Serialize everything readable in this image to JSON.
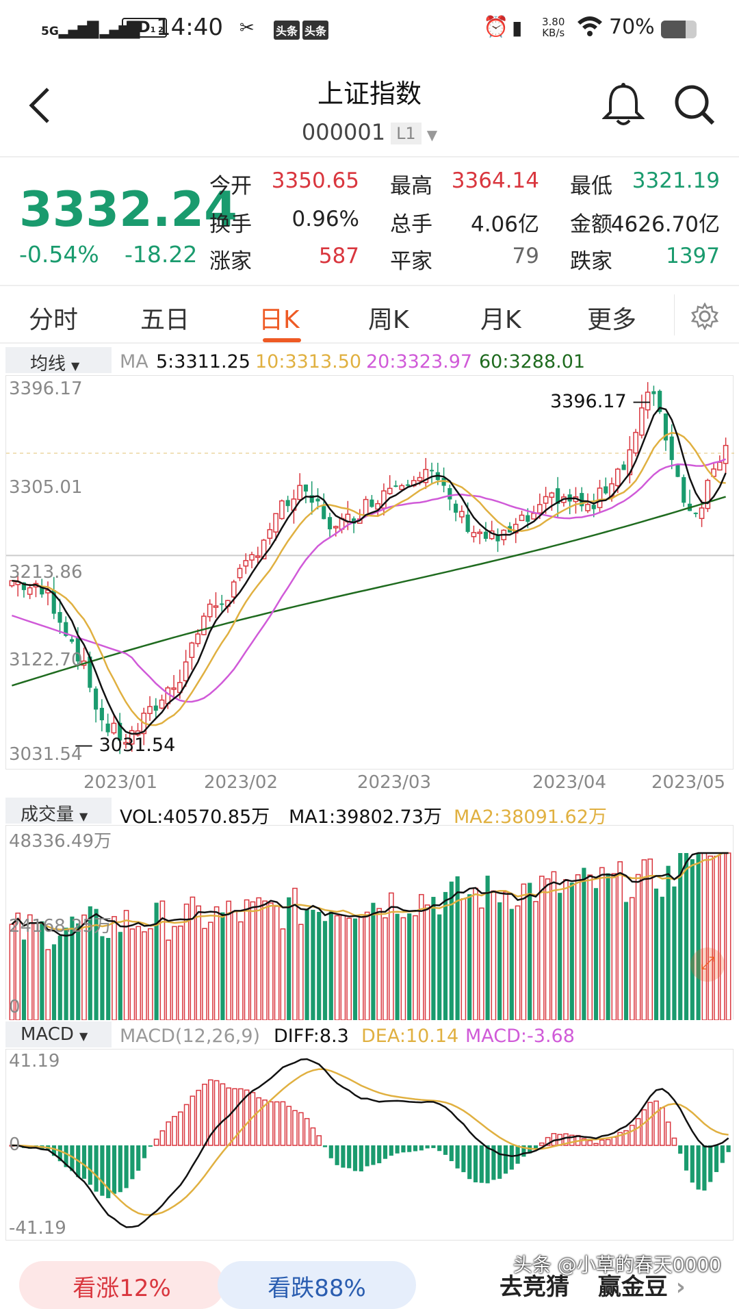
{
  "status_bar": {
    "net1": "5G",
    "net2": "4G",
    "hd": "HD",
    "hd_sub": "1 2",
    "time": "14:40",
    "badge1": "头条",
    "badge2": "头条",
    "speed_value": "3.80",
    "speed_unit": "KB/s",
    "battery": "70%",
    "battery_level": 0.7
  },
  "header": {
    "title": "上证指数",
    "code": "000001",
    "level_tag": "L1"
  },
  "quote": {
    "price": "3332.24",
    "change_pct": "-0.54%",
    "change": "-18.22",
    "rows": [
      [
        {
          "k": "今开",
          "v": "3350.65",
          "c": "red"
        },
        {
          "k": "最高",
          "v": "3364.14",
          "c": "red"
        },
        {
          "k": "最低",
          "v": "3321.19",
          "c": "green"
        }
      ],
      [
        {
          "k": "换手",
          "v": "0.96%",
          "c": "dark"
        },
        {
          "k": "总手",
          "v": "4.06亿",
          "c": "dark"
        },
        {
          "k": "金额",
          "v": "4626.70亿",
          "c": "dark"
        }
      ],
      [
        {
          "k": "涨家",
          "v": "587",
          "c": "red"
        },
        {
          "k": "平家",
          "v": "79",
          "c": "gray"
        },
        {
          "k": "跌家",
          "v": "1397",
          "c": "green"
        }
      ]
    ]
  },
  "tabs": [
    "分时",
    "五日",
    "日K",
    "周K",
    "月K",
    "更多"
  ],
  "active_tab": "日K",
  "ma_legend": {
    "dropdown": "均线",
    "ma": "MA",
    "ma5": "5:3311.25",
    "ma10": "10:3313.50",
    "ma20": "20:3323.97",
    "ma60": "60:3288.01"
  },
  "kline": {
    "y_labels": [
      "3396.17",
      "3305.01",
      "3213.86",
      "3122.70",
      "3031.54"
    ],
    "high_marker": "3396.17",
    "low_marker": "3031.54",
    "dates": [
      "2023/01",
      "2023/02",
      "2023/03",
      "2023/04",
      "2023/05"
    ]
  },
  "vol_legend": {
    "dropdown": "成交量",
    "vol": "VOL:40570.85万",
    "ma1": "MA1:39802.73万",
    "ma2": "MA2:38091.62万",
    "y_top": "48336.49万",
    "y_mid": "24168.25万",
    "y_zero": "0"
  },
  "macd_legend": {
    "dropdown": "MACD",
    "params": "MACD(12,26,9)",
    "diff": "DIFF:8.3",
    "dea": "DEA:10.14",
    "macd": "MACD:-3.68",
    "y_top": "41.19",
    "y_zero": "0",
    "y_bottom": "-41.19"
  },
  "bottom": {
    "up": "看涨12%",
    "down": "看跌88%",
    "guess": "去竞猜",
    "win": "赢金豆",
    "watermark": "头条 @小草的春天0000"
  },
  "colors": {
    "up": "#d9363e",
    "down": "#1a9b6e",
    "ma5": "#111111",
    "ma10": "#e0b040",
    "ma20": "#d05ad8",
    "ma60": "#1f6b1f",
    "accent": "#ee5a24"
  }
}
